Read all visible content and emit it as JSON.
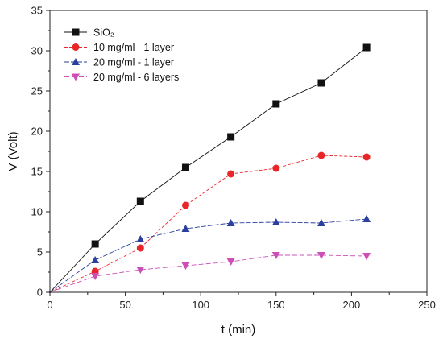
{
  "chart_data": {
    "type": "line",
    "xlabel": "t (min)",
    "ylabel": "V (Volt)",
    "xlim": [
      0,
      250
    ],
    "ylim": [
      0,
      35
    ],
    "xticks": [
      0,
      50,
      100,
      150,
      200,
      250
    ],
    "yticks": [
      0,
      5,
      10,
      15,
      20,
      25,
      30,
      35
    ],
    "grid": false,
    "legend_position": "top-left",
    "series": [
      {
        "name": "SiO₂",
        "marker": "square",
        "color": "#111111",
        "dash": "none",
        "x": [
          0,
          30,
          60,
          90,
          120,
          150,
          180,
          210
        ],
        "y": [
          0,
          6.0,
          11.3,
          15.5,
          19.3,
          23.4,
          26.0,
          30.4
        ]
      },
      {
        "name": "10 mg/ml - 1 layer",
        "marker": "circle",
        "color": "#e8262a",
        "dash": "4,2",
        "x": [
          0,
          30,
          60,
          90,
          120,
          150,
          180,
          210
        ],
        "y": [
          0,
          2.6,
          5.5,
          10.8,
          14.7,
          15.4,
          17.0,
          16.8
        ]
      },
      {
        "name": "20 mg/ml - 1 layer",
        "marker": "triangle-up",
        "color": "#2a3f9e",
        "dash": "6,2",
        "x": [
          0,
          30,
          60,
          90,
          120,
          150,
          180,
          210
        ],
        "y": [
          0,
          4.0,
          6.6,
          7.9,
          8.6,
          8.7,
          8.6,
          9.1
        ]
      },
      {
        "name": "20 mg/ml - 6 layers",
        "marker": "triangle-down",
        "color": "#cc4fb6",
        "dash": "6,3",
        "x": [
          0,
          30,
          60,
          90,
          120,
          150,
          180,
          210
        ],
        "y": [
          0,
          2.0,
          2.8,
          3.3,
          3.8,
          4.6,
          4.6,
          4.5
        ]
      }
    ]
  }
}
